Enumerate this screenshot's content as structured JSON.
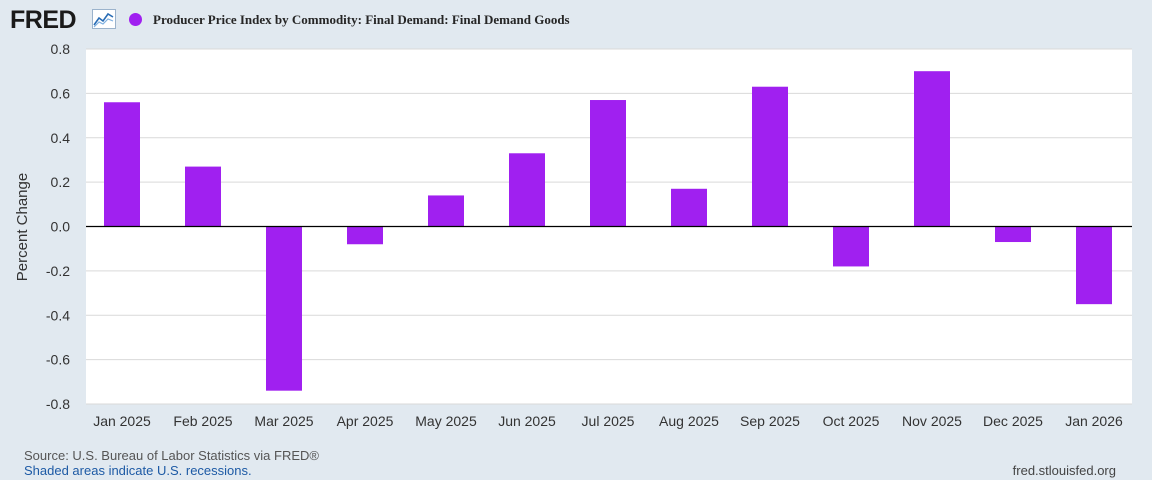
{
  "header": {
    "logo": "FRED",
    "legend_label": "Producer Price Index by Commodity: Final Demand: Final Demand Goods"
  },
  "footer": {
    "source": "Source: U.S. Bureau of Labor Statistics via FRED®",
    "recession_note": "Shaded areas indicate U.S. recessions.",
    "url": "fred.stlouisfed.org"
  },
  "colors": {
    "series": "#a020f0",
    "background": "#e1e9f0",
    "plot": "#ffffff"
  },
  "chart_data": {
    "type": "bar",
    "title": "Producer Price Index by Commodity: Final Demand: Final Demand Goods",
    "xlabel": "",
    "ylabel": "Percent Change",
    "ylim": [
      -0.8,
      0.8
    ],
    "yticks": [
      "0.8",
      "0.6",
      "0.4",
      "0.2",
      "0.0",
      "-0.2",
      "-0.4",
      "-0.6",
      "-0.8"
    ],
    "categories": [
      "Jan 2025",
      "Feb 2025",
      "Mar 2025",
      "Apr 2025",
      "May 2025",
      "Jun 2025",
      "Jul 2025",
      "Aug 2025",
      "Sep 2025",
      "Oct 2025",
      "Nov 2025",
      "Dec 2025",
      "Jan 2026"
    ],
    "series": [
      {
        "name": "Producer Price Index by Commodity: Final Demand: Final Demand Goods",
        "values": [
          0.56,
          0.27,
          -0.74,
          -0.08,
          0.14,
          0.33,
          0.57,
          0.17,
          0.63,
          -0.18,
          0.7,
          -0.07,
          -0.35
        ]
      }
    ],
    "grid": true,
    "legend": "top-left"
  }
}
